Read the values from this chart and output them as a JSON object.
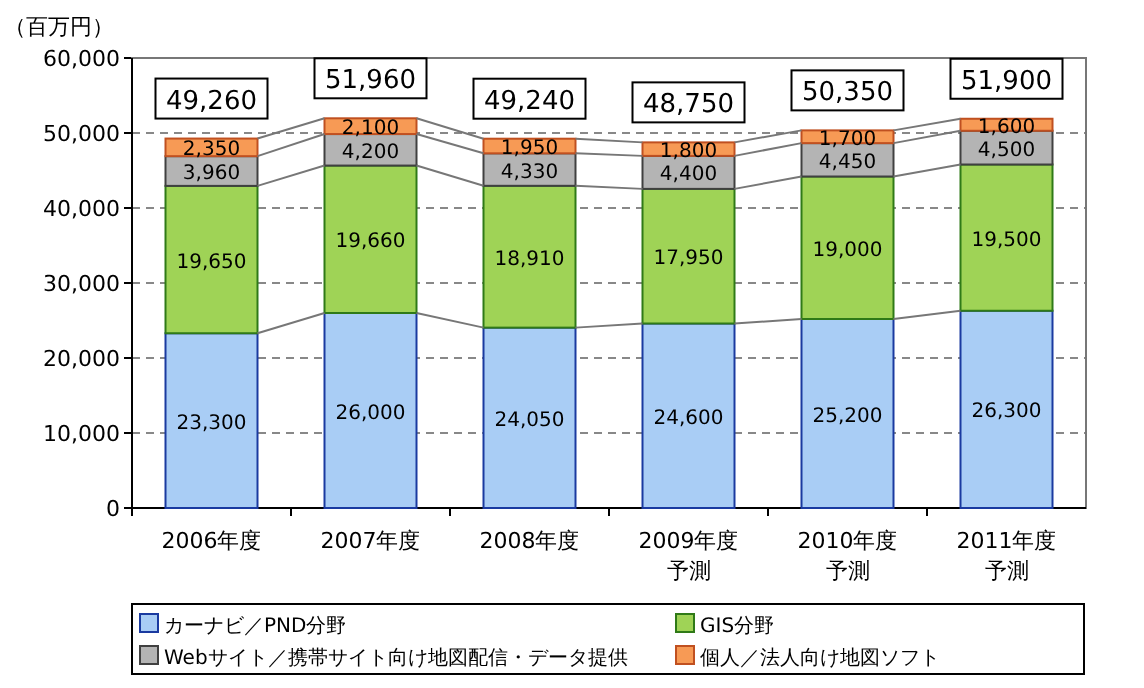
{
  "chart_data": {
    "type": "bar",
    "stacked": true,
    "ylabel": "（百万円）",
    "categories": [
      "2006年度",
      "2007年度",
      "2008年度",
      "2009年度予測",
      "2010年度予測",
      "2011年度予測"
    ],
    "series": [
      {
        "name": "カーナビ／PND分野",
        "color": "#a9cdf5",
        "values": [
          23300,
          26000,
          24050,
          24600,
          25200,
          26300
        ],
        "value_labels": [
          "23,300",
          "26,000",
          "24,050",
          "24,600",
          "25,200",
          "26,300"
        ]
      },
      {
        "name": "GIS分野",
        "color": "#9fd356",
        "values": [
          19650,
          19660,
          18910,
          17950,
          19000,
          19500
        ],
        "value_labels": [
          "19,650",
          "19,660",
          "18,910",
          "17,950",
          "19,000",
          "19,500"
        ]
      },
      {
        "name": "Webサイト／携帯サイト向け地図配信・データ提供",
        "color": "#b4b4b4",
        "values": [
          3960,
          4200,
          4330,
          4400,
          4450,
          4500
        ],
        "value_labels": [
          "3,960",
          "4,200",
          "4,330",
          "4,400",
          "4,450",
          "4,500"
        ]
      },
      {
        "name": "個人／法人向け地図ソフト",
        "color": "#f79a55",
        "values": [
          2350,
          2100,
          1950,
          1800,
          1700,
          1600
        ],
        "value_labels": [
          "2,350",
          "2,100",
          "1,950",
          "1,800",
          "1,700",
          "1,600"
        ]
      }
    ],
    "totals": [
      "49,260",
      "51,960",
      "49,240",
      "48,750",
      "50,350",
      "51,900"
    ],
    "ylim": [
      0,
      60000
    ],
    "yticks": [
      0,
      {
        "value": 10000,
        "label": "10,000"
      },
      {
        "value": 20000,
        "label": "20,000"
      },
      {
        "value": 30000,
        "label": "30,000"
      },
      {
        "value": 40000,
        "label": "40,000"
      },
      {
        "value": 50000,
        "label": "50,000"
      },
      {
        "value": 60000,
        "label": "60,000"
      }
    ],
    "grid": "y",
    "legend": "bottom"
  }
}
